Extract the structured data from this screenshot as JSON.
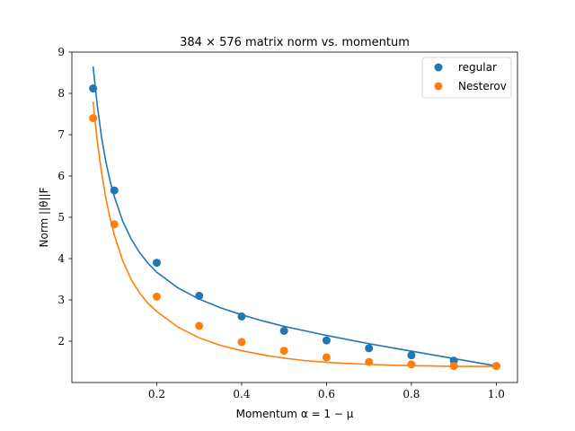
{
  "chart_data": {
    "type": "scatter",
    "title": "384 × 576 matrix norm vs. momentum",
    "xlabel": "Momentum α = 1 − μ",
    "ylabel": "Norm ||θ||F",
    "xlim": [
      0.0,
      1.05
    ],
    "ylim": [
      1.0,
      9.0
    ],
    "xticks": [
      0.2,
      0.4,
      0.6,
      0.8,
      1.0
    ],
    "xtick_labels": [
      "0.2",
      "0.4",
      "0.6",
      "0.8",
      "1.0"
    ],
    "yticks": [
      2,
      3,
      4,
      5,
      6,
      7,
      8,
      9
    ],
    "ytick_labels": [
      "2",
      "3",
      "4",
      "5",
      "6",
      "7",
      "8",
      "9"
    ],
    "grid": false,
    "legend_position": "top-right",
    "series": [
      {
        "name": "regular",
        "color": "#1f77b4",
        "x": [
          0.05,
          0.1,
          0.2,
          0.3,
          0.4,
          0.5,
          0.6,
          0.7,
          0.8,
          0.9,
          1.0
        ],
        "y": [
          8.12,
          5.65,
          3.9,
          3.1,
          2.6,
          2.25,
          2.02,
          1.83,
          1.66,
          1.53,
          1.4
        ],
        "fit_x": [
          0.05,
          0.06,
          0.07,
          0.08,
          0.09,
          0.1,
          0.12,
          0.14,
          0.16,
          0.18,
          0.2,
          0.25,
          0.3,
          0.35,
          0.4,
          0.45,
          0.5,
          0.55,
          0.6,
          0.65,
          0.7,
          0.75,
          0.8,
          0.85,
          0.9,
          0.95,
          1.0
        ],
        "fit_y": [
          8.65,
          7.7,
          6.93,
          6.35,
          5.88,
          5.5,
          4.9,
          4.47,
          4.14,
          3.88,
          3.67,
          3.29,
          3.02,
          2.81,
          2.64,
          2.49,
          2.36,
          2.25,
          2.14,
          2.04,
          1.94,
          1.85,
          1.76,
          1.67,
          1.58,
          1.49,
          1.4
        ]
      },
      {
        "name": "Nesterov",
        "color": "#ff7f0e",
        "x": [
          0.05,
          0.1,
          0.2,
          0.3,
          0.4,
          0.5,
          0.6,
          0.7,
          0.8,
          0.9,
          1.0
        ],
        "y": [
          7.4,
          4.83,
          3.08,
          2.37,
          1.98,
          1.77,
          1.61,
          1.5,
          1.44,
          1.4,
          1.4
        ],
        "fit_x": [
          0.05,
          0.06,
          0.07,
          0.08,
          0.09,
          0.1,
          0.12,
          0.14,
          0.16,
          0.18,
          0.2,
          0.25,
          0.3,
          0.35,
          0.4,
          0.45,
          0.5,
          0.55,
          0.6,
          0.65,
          0.7,
          0.75,
          0.8,
          0.85,
          0.9,
          0.95,
          1.0
        ],
        "fit_y": [
          7.8,
          6.83,
          6.08,
          5.47,
          4.98,
          4.57,
          3.94,
          3.49,
          3.16,
          2.91,
          2.72,
          2.34,
          2.08,
          1.9,
          1.77,
          1.67,
          1.59,
          1.53,
          1.49,
          1.46,
          1.44,
          1.42,
          1.41,
          1.4,
          1.39,
          1.39,
          1.39
        ]
      }
    ]
  }
}
